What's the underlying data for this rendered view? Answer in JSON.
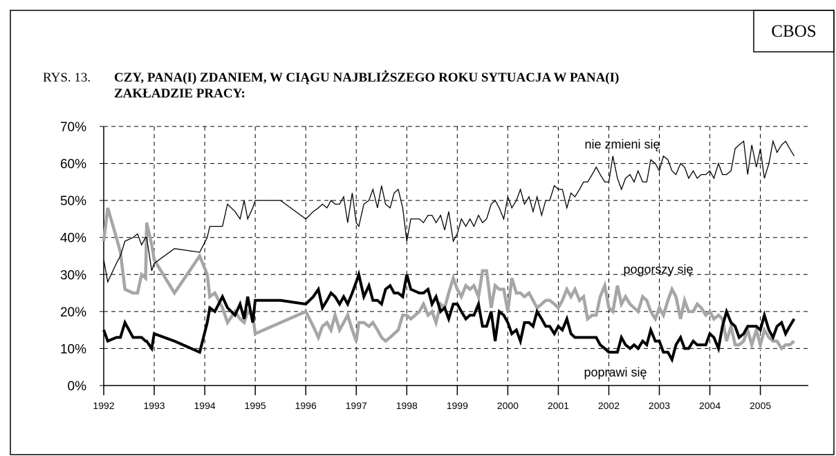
{
  "source": "CBOS",
  "figure_label": "RYS. 13.",
  "chart_data": {
    "type": "line",
    "title": [
      "CZY, PANA(I) ZDANIEM, W CIĄGU NAJBLIŻSZEGO ROKU SYTUACJA W PANA(I)",
      "ZAKŁADZIE PRACY:"
    ],
    "x": [
      1992.0,
      1992.08,
      1992.25,
      1992.33,
      1992.42,
      1992.58,
      1992.67,
      1992.75,
      1992.83,
      1992.85,
      1992.95,
      1993.0,
      1993.4,
      1993.9,
      1994.05,
      1994.1,
      1994.2,
      1994.35,
      1994.45,
      1994.6,
      1994.7,
      1994.78,
      1994.85,
      1994.95,
      1995.0,
      1995.5,
      1996.0,
      1996.15,
      1996.25,
      1996.33,
      1996.42,
      1996.5,
      1996.58,
      1996.67,
      1996.75,
      1996.83,
      1996.92,
      1997.0,
      1997.05,
      1997.15,
      1997.25,
      1997.33,
      1997.42,
      1997.5,
      1997.58,
      1997.67,
      1997.75,
      1997.83,
      1997.92,
      1998.0,
      1998.08,
      1998.25,
      1998.33,
      1998.42,
      1998.5,
      1998.58,
      1998.67,
      1998.75,
      1998.83,
      1998.92,
      1999.0,
      1999.08,
      1999.17,
      1999.25,
      1999.33,
      1999.42,
      1999.5,
      1999.58,
      1999.67,
      1999.75,
      1999.83,
      1999.92,
      2000.0,
      2000.08,
      2000.17,
      2000.25,
      2000.33,
      2000.42,
      2000.5,
      2000.58,
      2000.67,
      2000.75,
      2000.83,
      2000.92,
      2001.0,
      2001.08,
      2001.17,
      2001.25,
      2001.33,
      2001.42,
      2001.5,
      2001.58,
      2001.67,
      2001.75,
      2001.83,
      2001.92,
      2002.0,
      2002.08,
      2002.17,
      2002.25,
      2002.33,
      2002.42,
      2002.5,
      2002.58,
      2002.67,
      2002.75,
      2002.83,
      2002.92,
      2003.0,
      2003.08,
      2003.17,
      2003.25,
      2003.33,
      2003.42,
      2003.5,
      2003.58,
      2003.67,
      2003.75,
      2003.83,
      2003.92,
      2004.0,
      2004.08,
      2004.17,
      2004.25,
      2004.33,
      2004.42,
      2004.5,
      2004.58,
      2004.67,
      2004.75,
      2004.83,
      2004.92,
      2005.0,
      2005.08,
      2005.17,
      2005.25,
      2005.33,
      2005.42,
      2005.5,
      2005.58,
      2005.67
    ],
    "series": [
      {
        "name": "nie zmieni się",
        "color": "#000000",
        "values": [
          34,
          28,
          33,
          35,
          39,
          40,
          41,
          38,
          40,
          40,
          31,
          33,
          37,
          36,
          40,
          43,
          43,
          43,
          49,
          47,
          45,
          50,
          45,
          48,
          50,
          50,
          45,
          47,
          48,
          49,
          48,
          50,
          49,
          49,
          51,
          44,
          52,
          44,
          43,
          49,
          50,
          53,
          48,
          54,
          49,
          48,
          52,
          53,
          48,
          39,
          45,
          45,
          44,
          46,
          46,
          44,
          46,
          42,
          47,
          39,
          41,
          45,
          43,
          45,
          43,
          46,
          44,
          45,
          49,
          50,
          48,
          45,
          51,
          48,
          50,
          53,
          49,
          51,
          47,
          51,
          46,
          50,
          50,
          54,
          53,
          53,
          48,
          52,
          51,
          53,
          55,
          55,
          57,
          59,
          57,
          55,
          55,
          62,
          56,
          53,
          56,
          57,
          55,
          58,
          55,
          55,
          61,
          60,
          58,
          62,
          61,
          58,
          57,
          60,
          59,
          56,
          58,
          56,
          57,
          57,
          58,
          56,
          60,
          57,
          57,
          58,
          64,
          65,
          66,
          57,
          65,
          59,
          64,
          56,
          60,
          66,
          63,
          65,
          66,
          64,
          62
        ]
      },
      {
        "name": "pogorszy się",
        "color": "#a6a6a6",
        "values": [
          39,
          48,
          40,
          36,
          26,
          25,
          25,
          30,
          29,
          44,
          38,
          34,
          25,
          35,
          30,
          24,
          25,
          21,
          17,
          20,
          18,
          17,
          20,
          19,
          14,
          17,
          20,
          16,
          13,
          16,
          17,
          15,
          19,
          15,
          17,
          19,
          15,
          12,
          17,
          17,
          16,
          17,
          15,
          13,
          12,
          13,
          14,
          15,
          19,
          19,
          18,
          20,
          22,
          19,
          20,
          17,
          22,
          21,
          25,
          29,
          26,
          24,
          27,
          26,
          27,
          24,
          31,
          31,
          21,
          27,
          26,
          26,
          20,
          29,
          25,
          25,
          24,
          25,
          23,
          21,
          22,
          23,
          23,
          22,
          21,
          23,
          26,
          24,
          26,
          23,
          24,
          18,
          19,
          19,
          24,
          27,
          21,
          20,
          27,
          22,
          24,
          22,
          21,
          20,
          24,
          23,
          20,
          18,
          21,
          19,
          23,
          26,
          24,
          18,
          23,
          20,
          20,
          22,
          21,
          19,
          20,
          18,
          19,
          18,
          12,
          16,
          11,
          11,
          12,
          15,
          11,
          15,
          11,
          15,
          13,
          12,
          12,
          10,
          11,
          11,
          12
        ]
      },
      {
        "name": "poprawi się",
        "color": "#000000",
        "values": [
          15,
          12,
          13,
          13,
          17,
          13,
          13,
          13,
          12,
          12,
          10,
          14,
          12,
          9,
          17,
          21,
          20,
          24,
          21,
          19,
          22,
          18,
          24,
          17,
          23,
          23,
          22,
          24,
          26,
          21,
          23,
          25,
          24,
          22,
          24,
          22,
          25,
          28,
          30,
          24,
          27,
          23,
          23,
          22,
          26,
          27,
          25,
          25,
          24,
          30,
          26,
          25,
          25,
          26,
          22,
          24,
          20,
          21,
          18,
          22,
          22,
          20,
          18,
          19,
          19,
          22,
          16,
          16,
          20,
          12,
          20,
          19,
          17,
          14,
          15,
          12,
          17,
          17,
          16,
          20,
          18,
          16,
          16,
          14,
          16,
          15,
          18,
          14,
          13,
          13,
          13,
          13,
          13,
          13,
          11,
          10,
          9,
          9,
          9,
          13,
          11,
          10,
          11,
          10,
          12,
          11,
          15,
          12,
          12,
          9,
          9,
          7,
          11,
          13,
          10,
          10,
          12,
          11,
          11,
          11,
          14,
          13,
          10,
          16,
          20,
          17,
          16,
          13,
          14,
          16,
          16,
          16,
          15,
          19,
          15,
          13,
          16,
          17,
          14,
          16,
          18
        ]
      }
    ],
    "annotations": [
      "nie zmieni się",
      "pogorszy się",
      "poprawi się"
    ],
    "xlim": [
      1992,
      2005.95
    ],
    "xticks": [
      1992,
      1993,
      1994,
      1995,
      1996,
      1997,
      1998,
      1999,
      2000,
      2001,
      2002,
      2003,
      2004,
      2005
    ],
    "ylim": [
      0,
      70
    ],
    "yticks": [
      {
        "value": 0,
        "label": "0%"
      },
      {
        "value": 10,
        "label": "10%"
      },
      {
        "value": 20,
        "label": "20%"
      },
      {
        "value": 30,
        "label": "30%"
      },
      {
        "value": 40,
        "label": "40%"
      },
      {
        "value": 50,
        "label": "50%"
      },
      {
        "value": 60,
        "label": "60%"
      },
      {
        "value": 70,
        "label": "70%"
      }
    ],
    "grid": true
  }
}
